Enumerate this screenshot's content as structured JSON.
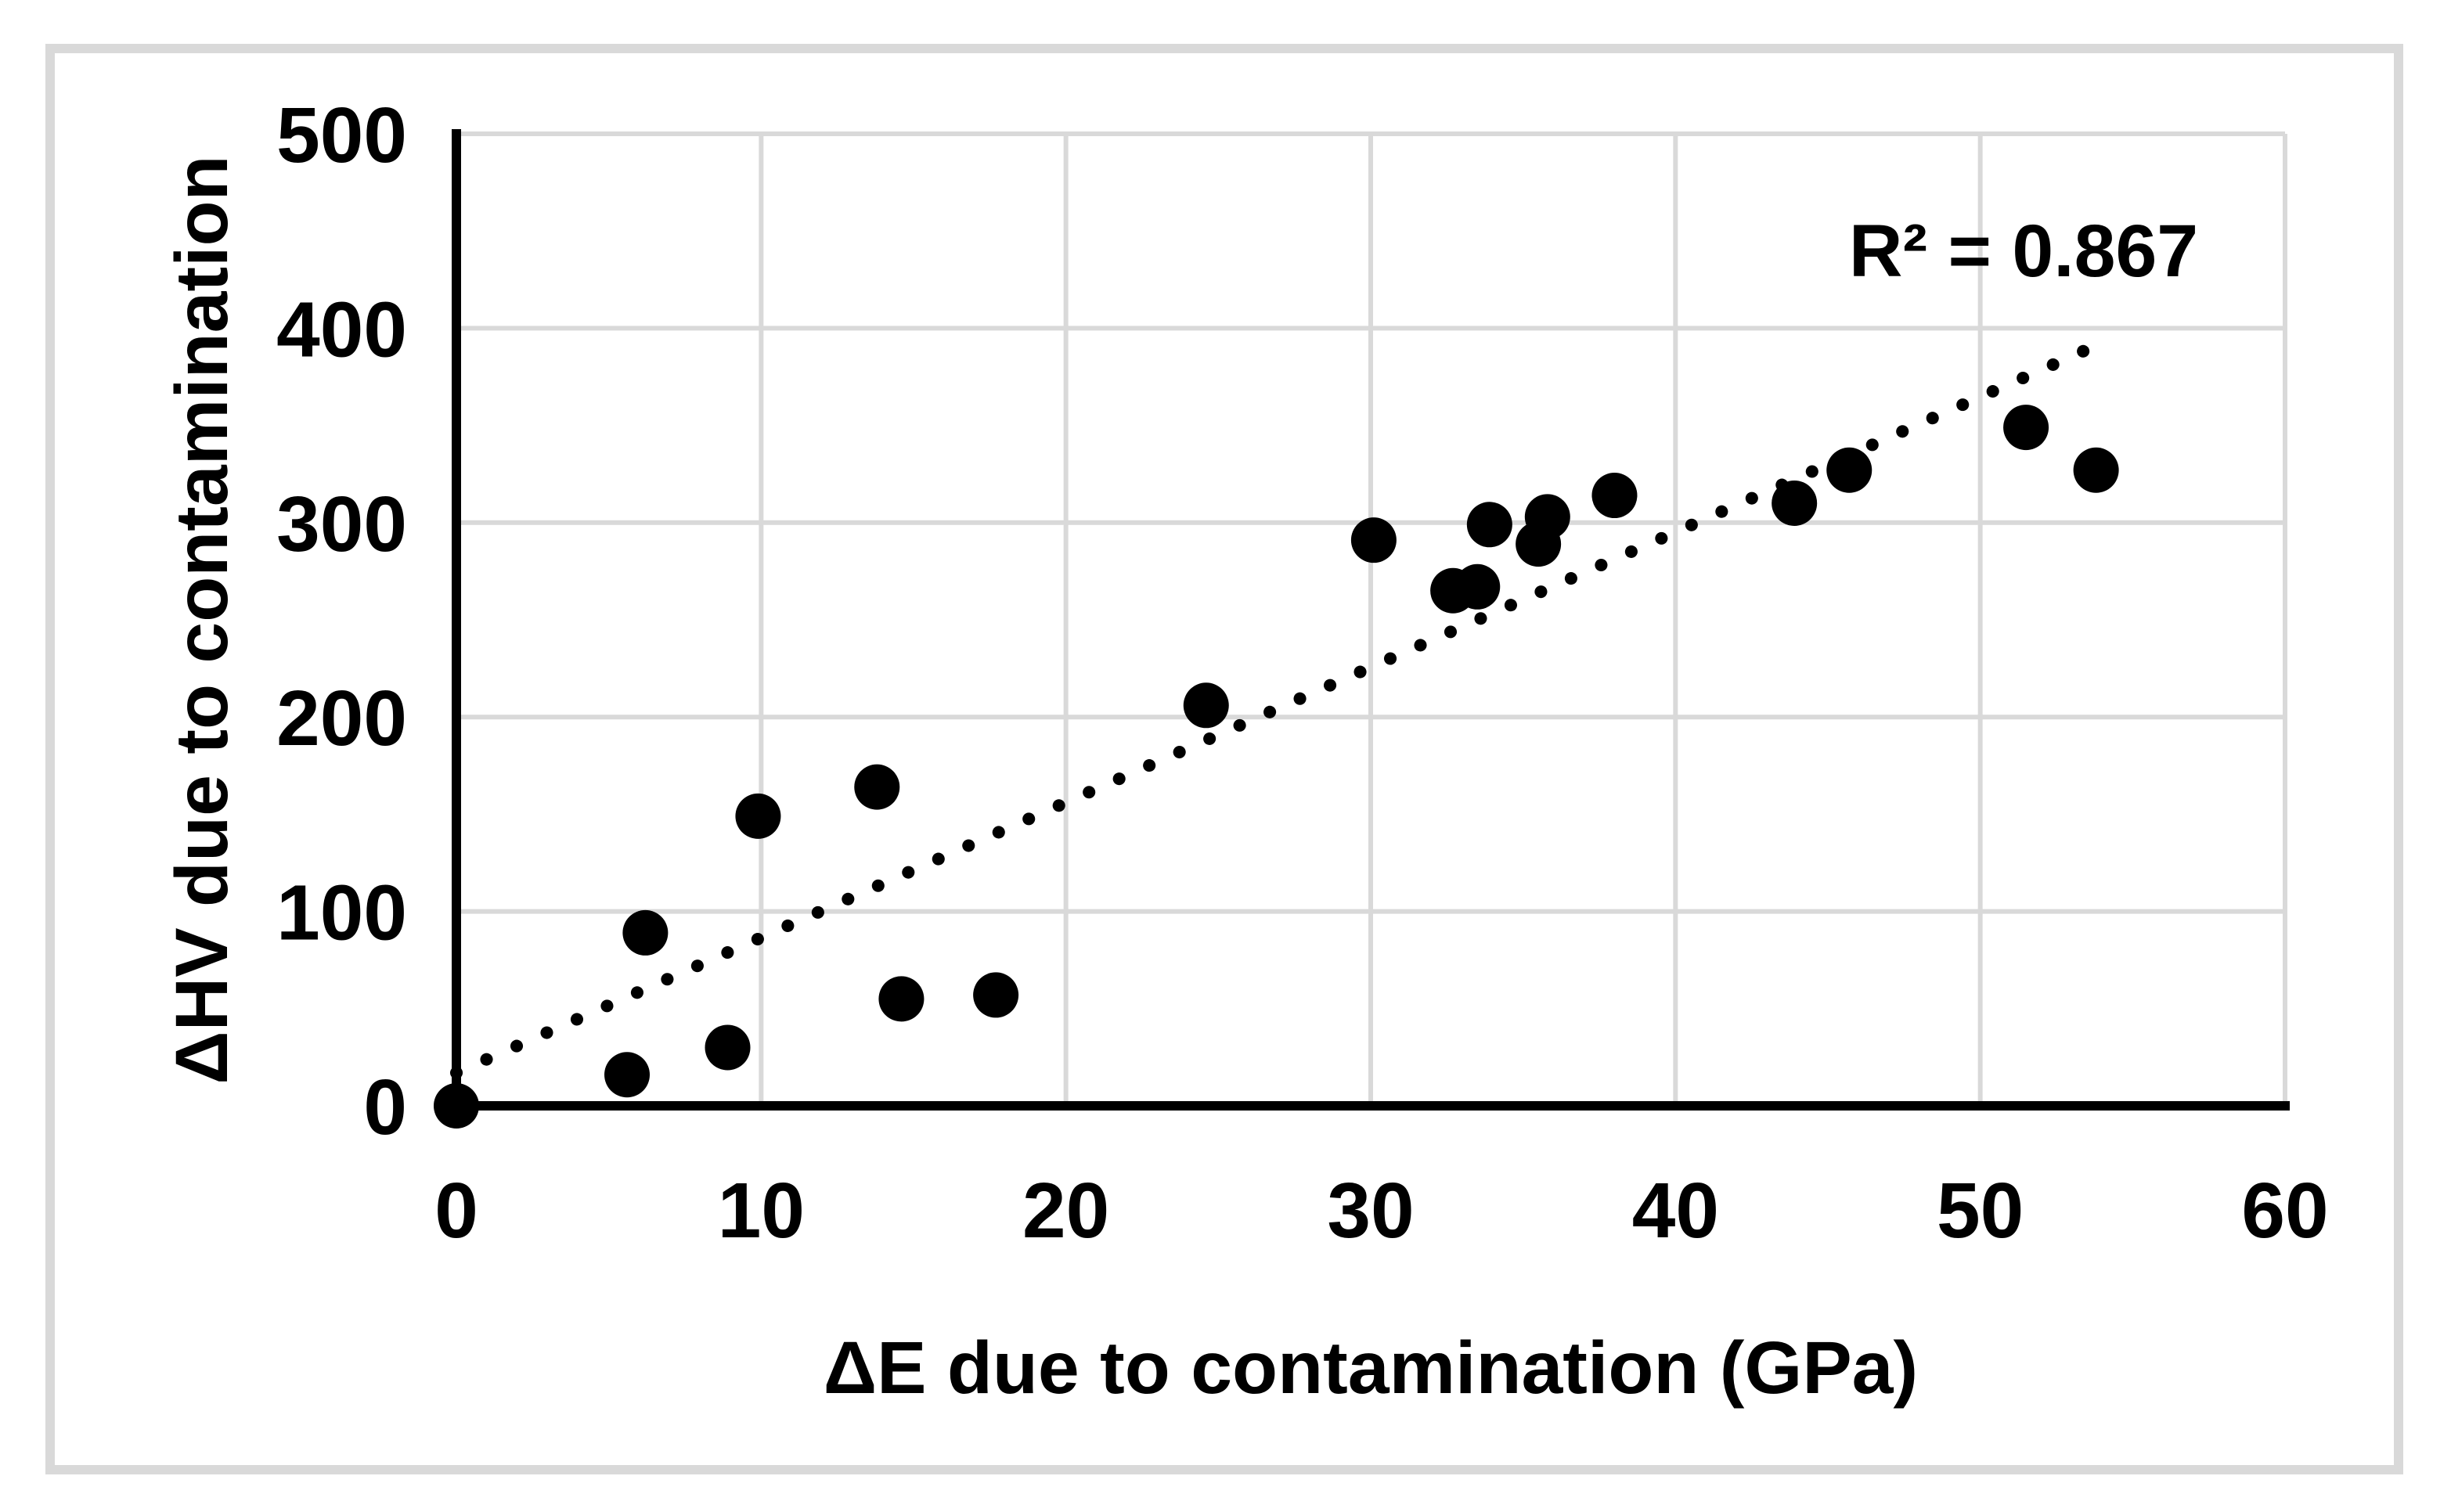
{
  "figure": {
    "background_color": "#ffffff",
    "border_color": "#d9d9d9"
  },
  "chart_data": {
    "type": "scatter",
    "title": "",
    "xlabel": "ΔE due to contamination (GPa)",
    "ylabel": "ΔHV due to contamination",
    "annotation": "R² = 0.867",
    "xlim": [
      0,
      60
    ],
    "ylim": [
      0,
      500
    ],
    "x_ticks": [
      0,
      10,
      20,
      30,
      40,
      50,
      60
    ],
    "y_ticks": [
      0,
      100,
      200,
      300,
      400,
      500
    ],
    "grid": true,
    "legend": "none",
    "gridline_color": "#d9d9d9",
    "axis_color": "#000000",
    "marker_color": "#000000",
    "points": [
      {
        "x": 0.0,
        "y": 0
      },
      {
        "x": 5.6,
        "y": 16
      },
      {
        "x": 6.2,
        "y": 89
      },
      {
        "x": 8.9,
        "y": 30
      },
      {
        "x": 9.9,
        "y": 149
      },
      {
        "x": 13.8,
        "y": 164
      },
      {
        "x": 14.6,
        "y": 55
      },
      {
        "x": 17.7,
        "y": 57
      },
      {
        "x": 24.6,
        "y": 206
      },
      {
        "x": 30.1,
        "y": 291
      },
      {
        "x": 32.7,
        "y": 265
      },
      {
        "x": 33.5,
        "y": 267
      },
      {
        "x": 33.9,
        "y": 299
      },
      {
        "x": 35.5,
        "y": 289
      },
      {
        "x": 35.8,
        "y": 303
      },
      {
        "x": 38.0,
        "y": 314
      },
      {
        "x": 43.9,
        "y": 310
      },
      {
        "x": 45.7,
        "y": 327
      },
      {
        "x": 51.5,
        "y": 349
      },
      {
        "x": 53.8,
        "y": 327
      }
    ],
    "trendline": {
      "style": "dotted",
      "x_start": 0,
      "y_start": 17,
      "x_end": 53.5,
      "y_end": 389
    }
  }
}
